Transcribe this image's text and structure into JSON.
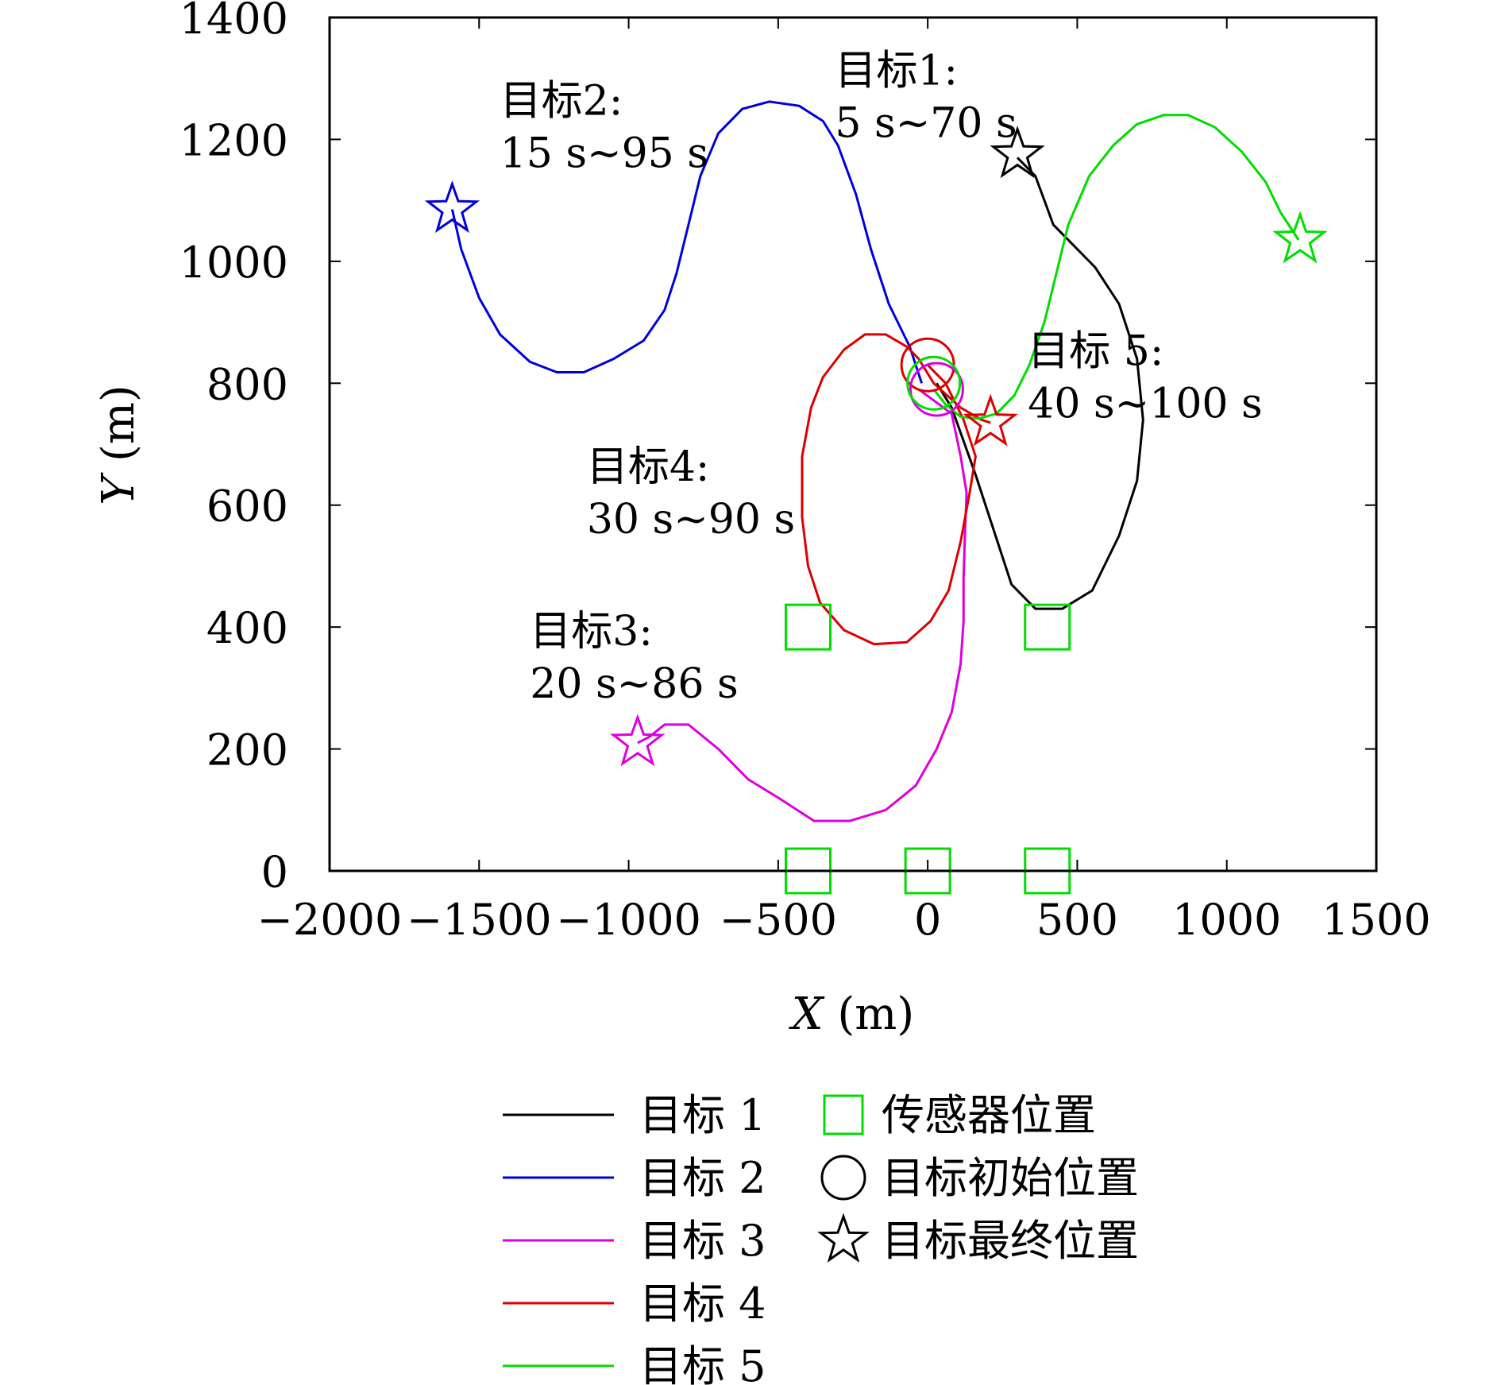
{
  "chart_data": {
    "type": "line",
    "xlabel_var": "X",
    "xlabel_unit": " (m)",
    "ylabel_var": "Y",
    "ylabel_unit": " (m)",
    "xlim": [
      -2000,
      1500
    ],
    "ylim": [
      0,
      1400
    ],
    "xticks": [
      -2000,
      -1500,
      -1000,
      -500,
      0,
      500,
      1000,
      1500
    ],
    "xtick_labels": [
      "−2000",
      "−1500",
      "−1000",
      "−500",
      "0",
      "500",
      "1000",
      "1500"
    ],
    "yticks": [
      0,
      200,
      400,
      600,
      800,
      1000,
      1200,
      1400
    ],
    "ytick_labels": [
      "0",
      "200",
      "400",
      "600",
      "800",
      "1000",
      "1200",
      "1400"
    ],
    "grid": false,
    "legend_position": "below",
    "series": [
      {
        "name": "目标 1",
        "color": "#000000",
        "points": [
          [
            30,
            800
          ],
          [
            80,
            760
          ],
          [
            160,
            650
          ],
          [
            220,
            560
          ],
          [
            280,
            470
          ],
          [
            360,
            430
          ],
          [
            450,
            430
          ],
          [
            550,
            460
          ],
          [
            640,
            550
          ],
          [
            700,
            640
          ],
          [
            720,
            740
          ],
          [
            700,
            840
          ],
          [
            640,
            930
          ],
          [
            560,
            990
          ],
          [
            420,
            1060
          ],
          [
            360,
            1140
          ],
          [
            300,
            1170
          ]
        ]
      },
      {
        "name": "目标 2",
        "color": "#0000dd",
        "points": [
          [
            -20,
            800
          ],
          [
            -60,
            860
          ],
          [
            -130,
            930
          ],
          [
            -190,
            1020
          ],
          [
            -240,
            1110
          ],
          [
            -300,
            1190
          ],
          [
            -350,
            1230
          ],
          [
            -430,
            1255
          ],
          [
            -530,
            1262
          ],
          [
            -620,
            1250
          ],
          [
            -700,
            1210
          ],
          [
            -760,
            1140
          ],
          [
            -800,
            1060
          ],
          [
            -840,
            980
          ],
          [
            -880,
            920
          ],
          [
            -950,
            870
          ],
          [
            -1050,
            840
          ],
          [
            -1150,
            818
          ],
          [
            -1240,
            818
          ],
          [
            -1330,
            835
          ],
          [
            -1430,
            880
          ],
          [
            -1500,
            940
          ],
          [
            -1560,
            1020
          ],
          [
            -1590,
            1085
          ]
        ]
      },
      {
        "name": "目标 3",
        "color": "#dd00dd",
        "points": [
          [
            -30,
            790
          ],
          [
            80,
            750
          ],
          [
            110,
            680
          ],
          [
            130,
            620
          ],
          [
            125,
            560
          ],
          [
            120,
            480
          ],
          [
            120,
            410
          ],
          [
            110,
            340
          ],
          [
            80,
            260
          ],
          [
            30,
            200
          ],
          [
            -40,
            140
          ],
          [
            -140,
            100
          ],
          [
            -260,
            82
          ],
          [
            -380,
            82
          ],
          [
            -500,
            120
          ],
          [
            -600,
            150
          ],
          [
            -700,
            200
          ],
          [
            -800,
            240
          ],
          [
            -880,
            240
          ],
          [
            -930,
            220
          ],
          [
            -970,
            210
          ]
        ]
      },
      {
        "name": "目标 4",
        "color": "#dd0000",
        "points": [
          [
            0,
            830
          ],
          [
            60,
            800
          ],
          [
            120,
            740
          ],
          [
            160,
            680
          ],
          [
            140,
            620
          ],
          [
            110,
            540
          ],
          [
            70,
            460
          ],
          [
            10,
            410
          ],
          [
            -70,
            375
          ],
          [
            -180,
            372
          ],
          [
            -280,
            395
          ],
          [
            -360,
            440
          ],
          [
            -400,
            500
          ],
          [
            -420,
            580
          ],
          [
            -420,
            680
          ],
          [
            -390,
            760
          ],
          [
            -350,
            810
          ],
          [
            -280,
            855
          ],
          [
            -210,
            880
          ],
          [
            -140,
            880
          ],
          [
            -70,
            860
          ],
          [
            -30,
            840
          ],
          [
            20,
            800
          ],
          [
            110,
            760
          ],
          [
            180,
            740
          ],
          [
            210,
            735
          ]
        ]
      },
      {
        "name": "目标 5",
        "color": "#00dd00",
        "points": [
          [
            20,
            790
          ],
          [
            60,
            765
          ],
          [
            110,
            745
          ],
          [
            170,
            742
          ],
          [
            230,
            750
          ],
          [
            290,
            780
          ],
          [
            340,
            830
          ],
          [
            390,
            900
          ],
          [
            430,
            980
          ],
          [
            470,
            1060
          ],
          [
            540,
            1140
          ],
          [
            620,
            1190
          ],
          [
            700,
            1225
          ],
          [
            790,
            1240
          ],
          [
            870,
            1240
          ],
          [
            960,
            1220
          ],
          [
            1050,
            1180
          ],
          [
            1130,
            1130
          ],
          [
            1180,
            1080
          ],
          [
            1220,
            1050
          ],
          [
            1240,
            1035
          ]
        ]
      }
    ],
    "initial_positions": [
      {
        "x": 0,
        "y": 830,
        "color": "#dd0000"
      },
      {
        "x": 30,
        "y": 790,
        "color": "#dd00dd"
      },
      {
        "x": 20,
        "y": 800,
        "color": "#00dd00"
      }
    ],
    "final_positions": [
      {
        "x": 300,
        "y": 1175,
        "color": "#000000"
      },
      {
        "x": -1590,
        "y": 1085,
        "color": "#0000dd"
      },
      {
        "x": -970,
        "y": 210,
        "color": "#dd00dd"
      },
      {
        "x": 210,
        "y": 735,
        "color": "#dd0000"
      },
      {
        "x": 1245,
        "y": 1035,
        "color": "#00dd00"
      }
    ],
    "sensor_positions": [
      [
        -400,
        400
      ],
      [
        400,
        400
      ],
      [
        -400,
        0
      ],
      [
        0,
        0
      ],
      [
        400,
        0
      ]
    ],
    "sensor_color": "#00dd00",
    "annotations": [
      {
        "lines": [
          "目标1:",
          "5 s~70 s"
        ],
        "x": -310,
        "y": 1290
      },
      {
        "lines": [
          "目标2:",
          "15 s~95 s"
        ],
        "x": -1430,
        "y": 1240
      },
      {
        "lines": [
          "目标3:",
          "20 s~86 s"
        ],
        "x": -1330,
        "y": 370
      },
      {
        "lines": [
          "目标4:",
          "30 s~90 s"
        ],
        "x": -1140,
        "y": 640
      },
      {
        "lines": [
          "目标 5:",
          "40 s~100 s"
        ],
        "x": 335,
        "y": 830
      }
    ],
    "legend": {
      "lines": [
        "目标 1",
        "目标 2",
        "目标 3",
        "目标 4",
        "目标 5"
      ],
      "markers": [
        "传感器位置",
        "目标初始位置",
        "目标最终位置"
      ]
    }
  }
}
